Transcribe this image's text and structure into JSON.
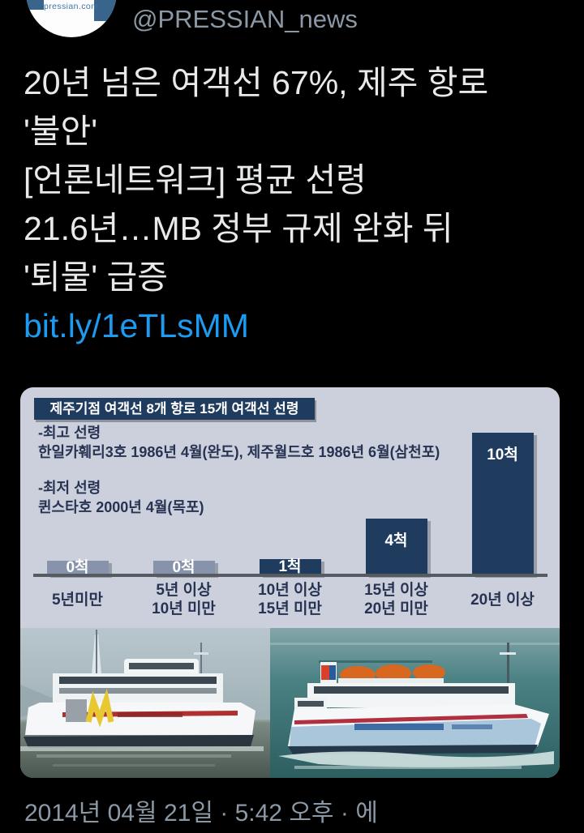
{
  "header": {
    "handle": "@PRESSIAN_news",
    "avatar_brand": "pressian.com"
  },
  "tweet": {
    "lines": [
      "20년 넘은 여객선 67%, 제주 항로",
      "'불안'",
      "[언론네트워크] 평균 선령",
      "21.6년…MB 정부 규제 완화 뒤",
      "'퇴물' 급증"
    ],
    "link": "bit.ly/1eTLsMM"
  },
  "chart_data": {
    "type": "bar",
    "title": "제주기점 여객선 8개 항로 15개 여객선 선령",
    "categories": [
      "5년미만",
      "5년 이상\n10년 미만",
      "10년 이상\n15년 미만",
      "15년 이상\n20년 미만",
      "20년 이상"
    ],
    "values": [
      0,
      0,
      1,
      4,
      10
    ],
    "value_labels": [
      "0척",
      "0척",
      "1척",
      "4척",
      "10척"
    ],
    "unit": "척",
    "ylim": [
      0,
      10
    ],
    "grid": false,
    "bar_colors": [
      "#8793ab",
      "#8793ab",
      "#1f3c5f",
      "#1f3c5f",
      "#1f3c5f"
    ],
    "annotations": {
      "max_label": "-최고 선령",
      "max_value": "한일카훼리3호 1986년 4월(완도), 제주월드호 1986년 6월(삼천포)",
      "min_label": "-최저 선령",
      "min_value": "퀸스타호 2000년 4월(목포)"
    }
  },
  "footer": {
    "timestamp": "2014년 04월 21일 · 5:42 오후 · 에"
  },
  "colors": {
    "background": "#000000",
    "tweet_text": "#e7e9ea",
    "secondary_text": "#8b98a5",
    "link": "#1d9bf0",
    "media_background": "#ccd0dc",
    "navy": "#1f3c5f",
    "grey_bar": "#8793ab"
  }
}
